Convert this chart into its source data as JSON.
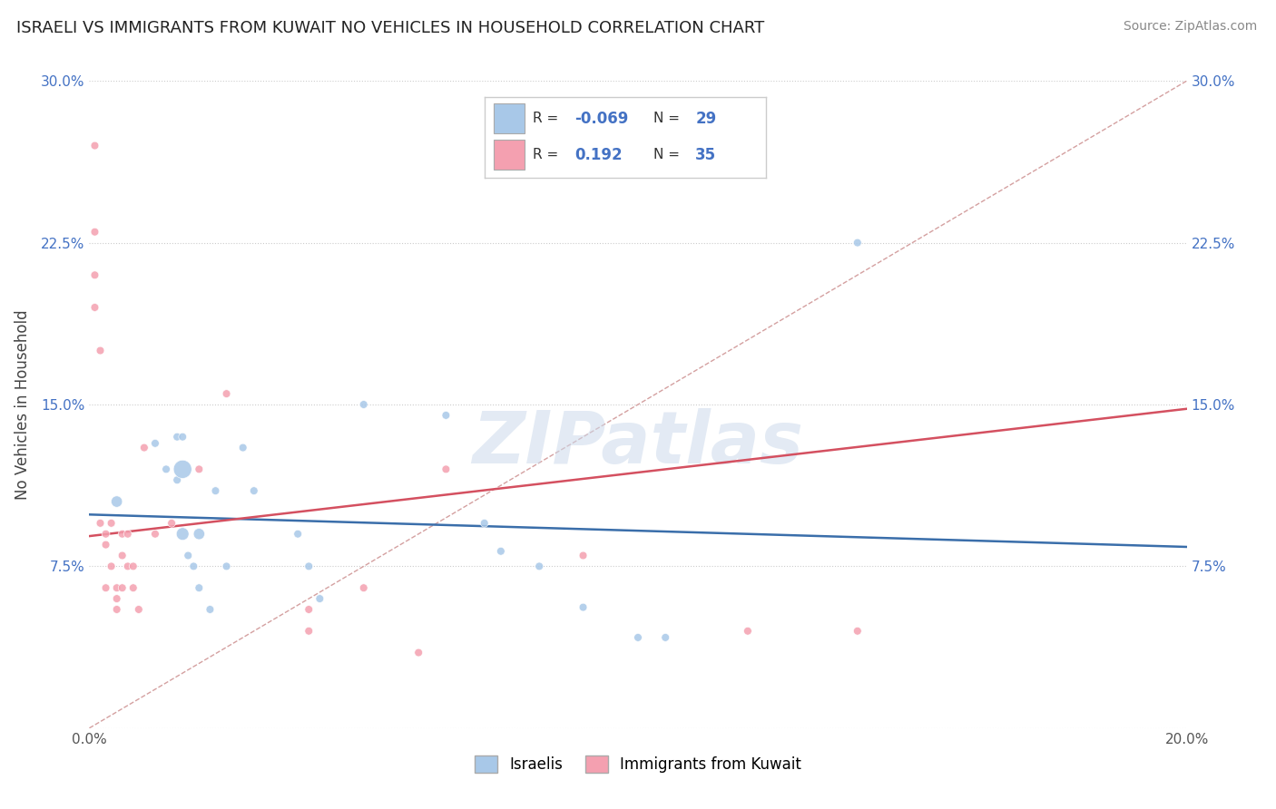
{
  "title": "ISRAELI VS IMMIGRANTS FROM KUWAIT NO VEHICLES IN HOUSEHOLD CORRELATION CHART",
  "source": "Source: ZipAtlas.com",
  "ylabel": "No Vehicles in Household",
  "xlim": [
    0.0,
    0.2
  ],
  "ylim": [
    0.0,
    0.3
  ],
  "xticks": [
    0.0,
    0.05,
    0.1,
    0.15,
    0.2
  ],
  "xticklabels": [
    "0.0%",
    "",
    "",
    "",
    "20.0%"
  ],
  "yticks": [
    0.0,
    0.075,
    0.15,
    0.225,
    0.3
  ],
  "yticklabels": [
    "",
    "7.5%",
    "15.0%",
    "22.5%",
    "30.0%"
  ],
  "legend_labels": [
    "Israelis",
    "Immigrants from Kuwait"
  ],
  "legend_R1": "-0.069",
  "legend_N1": "29",
  "legend_R2": "0.192",
  "legend_N2": "35",
  "blue_color": "#a8c8e8",
  "pink_color": "#f4a0b0",
  "blue_line_color": "#3a6eaa",
  "pink_line_color": "#d45060",
  "dash_color": "#d4a0a0",
  "watermark_text": "ZIPatlas",
  "israelis_x": [
    0.005,
    0.012,
    0.014,
    0.016,
    0.016,
    0.017,
    0.017,
    0.017,
    0.018,
    0.019,
    0.02,
    0.02,
    0.022,
    0.023,
    0.025,
    0.028,
    0.03,
    0.038,
    0.04,
    0.042,
    0.05,
    0.065,
    0.072,
    0.075,
    0.082,
    0.09,
    0.1,
    0.105,
    0.14
  ],
  "israelis_y": [
    0.105,
    0.132,
    0.12,
    0.135,
    0.115,
    0.135,
    0.12,
    0.09,
    0.08,
    0.075,
    0.09,
    0.065,
    0.055,
    0.11,
    0.075,
    0.13,
    0.11,
    0.09,
    0.075,
    0.06,
    0.15,
    0.145,
    0.095,
    0.082,
    0.075,
    0.056,
    0.042,
    0.042,
    0.225
  ],
  "israelis_size": [
    80,
    40,
    40,
    40,
    40,
    40,
    210,
    100,
    40,
    40,
    80,
    40,
    40,
    40,
    40,
    40,
    40,
    40,
    40,
    40,
    40,
    40,
    40,
    40,
    40,
    40,
    40,
    40,
    40
  ],
  "kuwait_x": [
    0.001,
    0.001,
    0.001,
    0.001,
    0.002,
    0.002,
    0.003,
    0.003,
    0.003,
    0.004,
    0.004,
    0.005,
    0.005,
    0.005,
    0.006,
    0.006,
    0.006,
    0.007,
    0.007,
    0.008,
    0.008,
    0.009,
    0.01,
    0.012,
    0.015,
    0.02,
    0.025,
    0.04,
    0.04,
    0.05,
    0.06,
    0.065,
    0.09,
    0.12,
    0.14
  ],
  "kuwait_y": [
    0.27,
    0.23,
    0.21,
    0.195,
    0.175,
    0.095,
    0.09,
    0.085,
    0.065,
    0.095,
    0.075,
    0.065,
    0.06,
    0.055,
    0.09,
    0.08,
    0.065,
    0.09,
    0.075,
    0.075,
    0.065,
    0.055,
    0.13,
    0.09,
    0.095,
    0.12,
    0.155,
    0.055,
    0.045,
    0.065,
    0.035,
    0.12,
    0.08,
    0.045,
    0.045
  ],
  "kuwait_size": [
    40,
    40,
    40,
    40,
    40,
    40,
    40,
    40,
    40,
    40,
    40,
    40,
    40,
    40,
    40,
    40,
    40,
    40,
    40,
    40,
    40,
    40,
    40,
    40,
    40,
    40,
    40,
    40,
    40,
    40,
    40,
    40,
    40,
    40,
    40
  ],
  "israeli_line_x": [
    0.0,
    0.2
  ],
  "israeli_line_y": [
    0.099,
    0.084
  ],
  "kuwait_line_x": [
    0.0,
    0.2
  ],
  "kuwait_line_y": [
    0.089,
    0.148
  ]
}
